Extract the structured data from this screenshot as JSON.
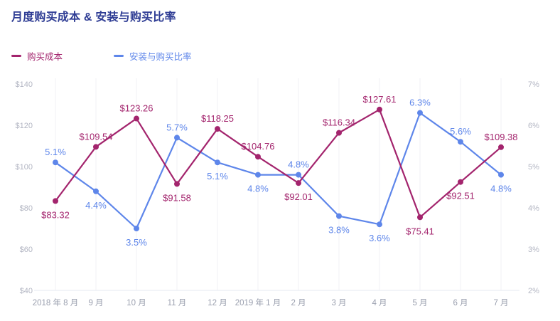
{
  "title": "月度购买成本 & 安装与购买比率",
  "colors": {
    "title": "#2e3c94",
    "cost": "#a3246d",
    "ratio": "#5e86ea",
    "y_axis_text": "#b3b6c3",
    "x_axis_text": "#9ba0af",
    "gridline": "#f0f1f6",
    "axis_line": "#e6e8f0",
    "background": "#ffffff"
  },
  "legend": [
    {
      "label": "购买成本",
      "color": "#a3246d"
    },
    {
      "label": "安装与购买比率",
      "color": "#5e86ea"
    }
  ],
  "chart_data": {
    "type": "line",
    "title": "月度购买成本 & 安装与购买比率",
    "categories": [
      "2018 年 8 月",
      "9 月",
      "10 月",
      "11 月",
      "12 月",
      "2019 年 1 月",
      "2 月",
      "3 月",
      "4 月",
      "5 月",
      "6 月",
      "7 月"
    ],
    "series": [
      {
        "name": "购买成本",
        "axis": "left",
        "color": "#a3246d",
        "values": [
          83.32,
          109.54,
          123.26,
          91.58,
          118.25,
          104.76,
          92.01,
          116.34,
          127.61,
          75.41,
          92.51,
          109.38
        ],
        "labels": [
          "$83.32",
          "$109.54",
          "$123.26",
          "$91.58",
          "$118.25",
          "$104.76",
          "$92.01",
          "$116.34",
          "$127.61",
          "$75.41",
          "$92.51",
          "$109.38"
        ],
        "label_pos": [
          "below",
          "above",
          "above",
          "below",
          "above",
          "above",
          "below",
          "above",
          "above",
          "below",
          "below",
          "above"
        ]
      },
      {
        "name": "安装与购买比率",
        "axis": "right",
        "color": "#5e86ea",
        "values": [
          5.1,
          4.4,
          3.5,
          5.7,
          5.1,
          4.8,
          4.8,
          3.8,
          3.6,
          6.3,
          5.6,
          4.8
        ],
        "labels": [
          "5.1%",
          "4.4%",
          "3.5%",
          "5.7%",
          "5.1%",
          "4.8%",
          "4.8%",
          "3.8%",
          "3.6%",
          "6.3%",
          "5.6%",
          "4.8%"
        ],
        "label_pos": [
          "above",
          "below",
          "below",
          "above",
          "below",
          "below",
          "above",
          "below",
          "below",
          "above",
          "above",
          "below"
        ]
      }
    ],
    "left_axis": {
      "ticks": [
        "$140",
        "$120",
        "$100",
        "$80",
        "$60",
        "$40"
      ],
      "min": 40,
      "max": 140
    },
    "right_axis": {
      "ticks": [
        "7%",
        "6%",
        "5%",
        "4%",
        "3%",
        "2%"
      ],
      "min": 2,
      "max": 7
    },
    "grid": "vertical-only",
    "legend_position": "top-left"
  }
}
